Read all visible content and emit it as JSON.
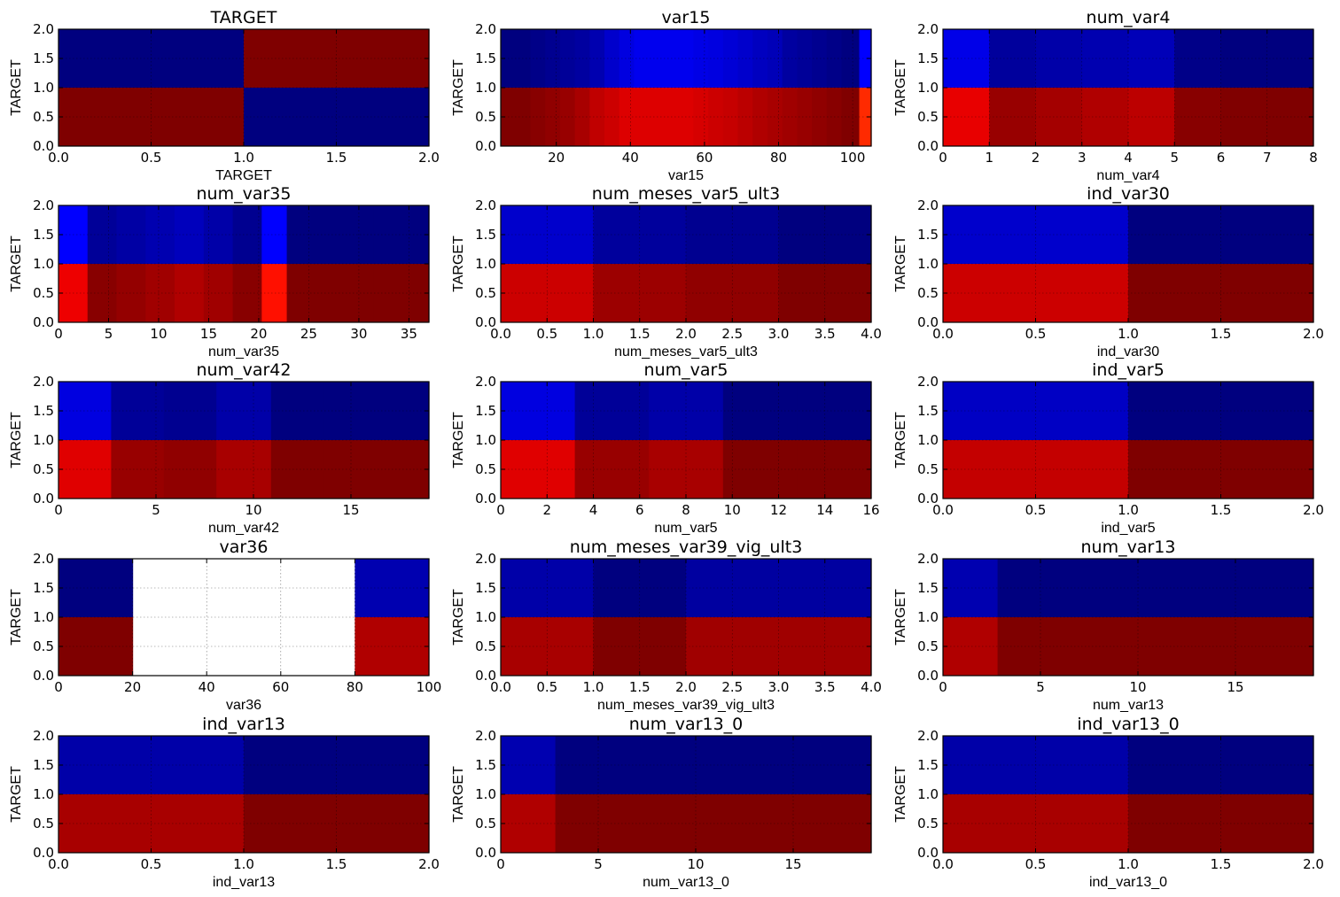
{
  "chart_data": [
    {
      "type": "heatmap",
      "title": "TARGET",
      "xlabel": "TARGET",
      "ylabel": "TARGET",
      "xlim": [
        0,
        2
      ],
      "ylim": [
        0,
        2
      ],
      "grid": true,
      "xticks": [
        "0.0",
        "0.5",
        "1.0",
        "1.5",
        "2.0"
      ],
      "yticks": [
        "0.0",
        "0.5",
        "1.0",
        "1.5",
        "2.0"
      ],
      "bins": [
        0,
        1,
        2
      ],
      "top_colors": [
        "#00007f",
        "#7f0000"
      ],
      "bottom_colors": [
        "#7f0000",
        "#00007f"
      ]
    },
    {
      "type": "heatmap",
      "title": "var15",
      "xlabel": "var15",
      "ylabel": "TARGET",
      "xlim": [
        5,
        105
      ],
      "ylim": [
        0,
        2
      ],
      "grid": true,
      "xticks": [
        "20",
        "40",
        "60",
        "80",
        "100"
      ],
      "xtick_values": [
        20,
        40,
        60,
        80,
        100
      ],
      "yticks": [
        "0.0",
        "0.5",
        "1.0",
        "1.5",
        "2.0"
      ],
      "bins": [
        5,
        9,
        13,
        17,
        21,
        25,
        29,
        33,
        37,
        41,
        45,
        49,
        53,
        57,
        61,
        65,
        69,
        73,
        77,
        81,
        85,
        89,
        93,
        97,
        101,
        105
      ],
      "top_colors": [
        "#00007f",
        "#00007f",
        "#000088",
        "#000090",
        "#000098",
        "#0000a0",
        "#0000b0",
        "#0000cc",
        "#0000e0",
        "#0000ee",
        "#0000ee",
        "#0000ee",
        "#0000ee",
        "#0000e6",
        "#0000e0",
        "#0000d6",
        "#0000cc",
        "#0000c0",
        "#0000b8",
        "#0000a0",
        "#000098",
        "#000090",
        "#000088",
        "#000080",
        "#0000ff"
      ],
      "top_overrides": [
        {
          "from": 100,
          "to": 101.8,
          "color": "#00007f"
        },
        {
          "from": 101.8,
          "to": 105,
          "color": "#0000ff"
        }
      ],
      "bottom_colors": [
        "#7f0000",
        "#7f0000",
        "#880000",
        "#900000",
        "#980000",
        "#a80000",
        "#c00000",
        "#cc0000",
        "#dd0000",
        "#dd0000",
        "#dd0000",
        "#dd0000",
        "#dd0000",
        "#d60000",
        "#cc0000",
        "#c60000",
        "#bb0000",
        "#b00000",
        "#a80000",
        "#a00000",
        "#980000",
        "#900000",
        "#880000",
        "#800000",
        "#ff2a00"
      ],
      "bottom_overrides": [
        {
          "from": 100,
          "to": 101.8,
          "color": "#7f0000"
        },
        {
          "from": 101.8,
          "to": 105,
          "color": "#ff2a00"
        }
      ]
    },
    {
      "type": "heatmap",
      "title": "num_var4",
      "xlabel": "num_var4",
      "ylabel": "TARGET",
      "xlim": [
        0,
        8
      ],
      "ylim": [
        0,
        2
      ],
      "grid": true,
      "xticks": [
        "0",
        "1",
        "2",
        "3",
        "4",
        "5",
        "6",
        "7",
        "8"
      ],
      "yticks": [
        "0.0",
        "0.5",
        "1.0",
        "1.5",
        "2.0"
      ],
      "bins": [
        0,
        1,
        2,
        3,
        4,
        5,
        6,
        7,
        8
      ],
      "top_colors": [
        "#0000e8",
        "#00009c",
        "#0000a8",
        "#0000b0",
        "#0000b8",
        "#000088",
        "#00007f",
        "#00007f"
      ],
      "bottom_colors": [
        "#e80000",
        "#980000",
        "#a40000",
        "#b00000",
        "#bc0000",
        "#880000",
        "#800000",
        "#7f0000"
      ]
    },
    {
      "type": "heatmap",
      "title": "num_var35",
      "xlabel": "num_var35",
      "ylabel": "TARGET",
      "xlim": [
        0,
        37
      ],
      "ylim": [
        0,
        2
      ],
      "grid": true,
      "xticks": [
        "0",
        "5",
        "10",
        "15",
        "20",
        "25",
        "30",
        "35"
      ],
      "xtick_values": [
        0,
        5,
        10,
        15,
        20,
        25,
        30,
        35
      ],
      "yticks": [
        "0.0",
        "0.5",
        "1.0",
        "1.5",
        "2.0"
      ],
      "bins": [
        0,
        2.9,
        5.8,
        8.7,
        11.6,
        14.5,
        17.4,
        20.3,
        22.8,
        25.7,
        28.6,
        31.5,
        34.4,
        37
      ],
      "top_colors": [
        "#0000ff",
        "#000098",
        "#0000a4",
        "#0000b0",
        "#0000bc",
        "#0000a8",
        "#000090",
        "#0000ff",
        "#00007f",
        "#00007f",
        "#00007f",
        "#00007f",
        "#00007f"
      ],
      "bottom_colors": [
        "#ee0000",
        "#880000",
        "#940000",
        "#a00000",
        "#b00000",
        "#a00000",
        "#880000",
        "#ff1000",
        "#7f0000",
        "#7f0000",
        "#7f0000",
        "#7f0000",
        "#7f0000"
      ]
    },
    {
      "type": "heatmap",
      "title": "num_meses_var5_ult3",
      "xlabel": "num_meses_var5_ult3",
      "ylabel": "TARGET",
      "xlim": [
        0,
        4
      ],
      "ylim": [
        0,
        2
      ],
      "grid": true,
      "xticks": [
        "0.0",
        "0.5",
        "1.0",
        "1.5",
        "2.0",
        "2.5",
        "3.0",
        "3.5",
        "4.0"
      ],
      "yticks": [
        "0.0",
        "0.5",
        "1.0",
        "1.5",
        "2.0"
      ],
      "bins": [
        0,
        1,
        2,
        3,
        4
      ],
      "top_colors": [
        "#0000cc",
        "#00009c",
        "#000090",
        "#00007f"
      ],
      "bottom_colors": [
        "#cc0000",
        "#9c0000",
        "#900000",
        "#7f0000"
      ]
    },
    {
      "type": "heatmap",
      "title": "ind_var30",
      "xlabel": "ind_var30",
      "ylabel": "TARGET",
      "xlim": [
        0,
        2
      ],
      "ylim": [
        0,
        2
      ],
      "grid": true,
      "xticks": [
        "0.0",
        "0.5",
        "1.0",
        "1.5",
        "2.0"
      ],
      "yticks": [
        "0.0",
        "0.5",
        "1.0",
        "1.5",
        "2.0"
      ],
      "bins": [
        0,
        1,
        2
      ],
      "top_colors": [
        "#0000cc",
        "#00007f"
      ],
      "bottom_colors": [
        "#cc0000",
        "#7f0000"
      ]
    },
    {
      "type": "heatmap",
      "title": "num_var42",
      "xlabel": "num_var42",
      "ylabel": "TARGET",
      "xlim": [
        0,
        19
      ],
      "ylim": [
        0,
        2
      ],
      "grid": true,
      "xticks": [
        "0",
        "5",
        "10",
        "15"
      ],
      "xtick_values": [
        0,
        5,
        10,
        15
      ],
      "yticks": [
        "0.0",
        "0.5",
        "1.0",
        "1.5",
        "2.0"
      ],
      "bins": [
        0,
        2.7,
        5.4,
        8.1,
        10.9,
        13.6,
        16.3,
        19
      ],
      "top_colors": [
        "#0000e0",
        "#000098",
        "#000090",
        "#0000a8",
        "#00007f",
        "#00007f",
        "#00007f"
      ],
      "bottom_colors": [
        "#e00000",
        "#980000",
        "#900000",
        "#a80000",
        "#7f0000",
        "#7f0000",
        "#7f0000"
      ]
    },
    {
      "type": "heatmap",
      "title": "num_var5",
      "xlabel": "num_var5",
      "ylabel": "TARGET",
      "xlim": [
        0,
        16
      ],
      "ylim": [
        0,
        2
      ],
      "grid": true,
      "xticks": [
        "0",
        "2",
        "4",
        "6",
        "8",
        "10",
        "12",
        "14",
        "16"
      ],
      "xtick_values": [
        0,
        2,
        4,
        6,
        8,
        10,
        12,
        14,
        16
      ],
      "yticks": [
        "0.0",
        "0.5",
        "1.0",
        "1.5",
        "2.0"
      ],
      "bins": [
        0,
        3.2,
        6.4,
        9.6,
        12.8,
        16
      ],
      "top_colors": [
        "#0000e0",
        "#000098",
        "#0000a8",
        "#00007f",
        "#00007f"
      ],
      "bottom_colors": [
        "#e00000",
        "#980000",
        "#a80000",
        "#7f0000",
        "#7f0000"
      ]
    },
    {
      "type": "heatmap",
      "title": "ind_var5",
      "xlabel": "ind_var5",
      "ylabel": "TARGET",
      "xlim": [
        0,
        2
      ],
      "ylim": [
        0,
        2
      ],
      "grid": true,
      "xticks": [
        "0.0",
        "0.5",
        "1.0",
        "1.5",
        "2.0"
      ],
      "yticks": [
        "0.0",
        "0.5",
        "1.0",
        "1.5",
        "2.0"
      ],
      "bins": [
        0,
        1,
        2
      ],
      "top_colors": [
        "#0000c4",
        "#00007f"
      ],
      "bottom_colors": [
        "#c40000",
        "#7f0000"
      ]
    },
    {
      "type": "heatmap",
      "title": "var36",
      "xlabel": "var36",
      "ylabel": "TARGET",
      "xlim": [
        0,
        100
      ],
      "ylim": [
        0,
        2
      ],
      "grid": true,
      "xticks": [
        "0",
        "20",
        "40",
        "60",
        "80",
        "100"
      ],
      "xtick_values": [
        0,
        20,
        40,
        60,
        80,
        100
      ],
      "yticks": [
        "0.0",
        "0.5",
        "1.0",
        "1.5",
        "2.0"
      ],
      "bins": [
        0,
        20,
        80,
        100
      ],
      "top_colors": [
        "#00007f",
        null,
        "#0000b0"
      ],
      "bottom_colors": [
        "#7f0000",
        null,
        "#b00000"
      ]
    },
    {
      "type": "heatmap",
      "title": "num_meses_var39_vig_ult3",
      "xlabel": "num_meses_var39_vig_ult3",
      "ylabel": "TARGET",
      "xlim": [
        0,
        4
      ],
      "ylim": [
        0,
        2
      ],
      "grid": true,
      "xticks": [
        "0.0",
        "0.5",
        "1.0",
        "1.5",
        "2.0",
        "2.5",
        "3.0",
        "3.5",
        "4.0"
      ],
      "yticks": [
        "0.0",
        "0.5",
        "1.0",
        "1.5",
        "2.0"
      ],
      "bins": [
        0,
        1,
        2,
        3,
        4
      ],
      "top_colors": [
        "#0000a8",
        "#00007f",
        "#0000a0",
        "#0000a0"
      ],
      "bottom_colors": [
        "#a80000",
        "#7f0000",
        "#a00000",
        "#a00000"
      ]
    },
    {
      "type": "heatmap",
      "title": "num_var13",
      "xlabel": "num_var13",
      "ylabel": "TARGET",
      "xlim": [
        0,
        19
      ],
      "ylim": [
        0,
        2
      ],
      "grid": true,
      "xticks": [
        "0",
        "5",
        "10",
        "15"
      ],
      "xtick_values": [
        0,
        5,
        10,
        15
      ],
      "yticks": [
        "0.0",
        "0.5",
        "1.0",
        "1.5",
        "2.0"
      ],
      "bins": [
        0,
        2.8,
        19
      ],
      "top_colors": [
        "#0000b0",
        "#00007f"
      ],
      "bottom_colors": [
        "#b00000",
        "#7f0000"
      ]
    },
    {
      "type": "heatmap",
      "title": "ind_var13",
      "xlabel": "ind_var13",
      "ylabel": "TARGET",
      "xlim": [
        0,
        2
      ],
      "ylim": [
        0,
        2
      ],
      "grid": true,
      "xticks": [
        "0.0",
        "0.5",
        "1.0",
        "1.5",
        "2.0"
      ],
      "yticks": [
        "0.0",
        "0.5",
        "1.0",
        "1.5",
        "2.0"
      ],
      "bins": [
        0,
        1,
        2
      ],
      "top_colors": [
        "#0000a8",
        "#00007f"
      ],
      "bottom_colors": [
        "#a80000",
        "#7f0000"
      ]
    },
    {
      "type": "heatmap",
      "title": "num_var13_0",
      "xlabel": "num_var13_0",
      "ylabel": "TARGET",
      "xlim": [
        0,
        19
      ],
      "ylim": [
        0,
        2
      ],
      "grid": true,
      "xticks": [
        "0",
        "5",
        "10",
        "15"
      ],
      "xtick_values": [
        0,
        5,
        10,
        15
      ],
      "yticks": [
        "0.0",
        "0.5",
        "1.0",
        "1.5",
        "2.0"
      ],
      "bins": [
        0,
        2.8,
        19
      ],
      "top_colors": [
        "#0000b0",
        "#00007f"
      ],
      "bottom_colors": [
        "#b00000",
        "#7f0000"
      ]
    },
    {
      "type": "heatmap",
      "title": "ind_var13_0",
      "xlabel": "ind_var13_0",
      "ylabel": "TARGET",
      "xlim": [
        0,
        2
      ],
      "ylim": [
        0,
        2
      ],
      "grid": true,
      "xticks": [
        "0.0",
        "0.5",
        "1.0",
        "1.5",
        "2.0"
      ],
      "yticks": [
        "0.0",
        "0.5",
        "1.0",
        "1.5",
        "2.0"
      ],
      "bins": [
        0,
        1,
        2
      ],
      "top_colors": [
        "#0000a8",
        "#00007f"
      ],
      "bottom_colors": [
        "#a80000",
        "#7f0000"
      ]
    }
  ]
}
